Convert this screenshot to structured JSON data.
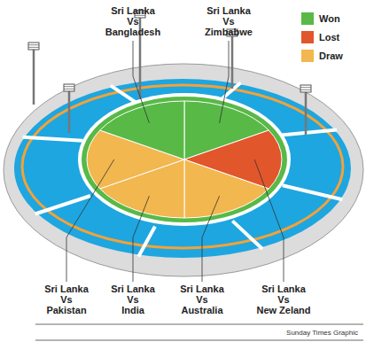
{
  "chart_data": {
    "type": "pie",
    "categories": [
      "Sri Lanka\nVs\nZimbabwe",
      "Sri Lanka\nVs\nNew Zeland",
      "Sri Lanka\nVs\nAustralia",
      "Sri Lanka\nVs\nIndia",
      "Sri Lanka\nVs\nPakistan",
      "Sri Lanka\nVs\nBangladesh"
    ],
    "values": [
      1,
      1,
      1,
      1,
      1,
      1
    ],
    "results": [
      "Won",
      "Lost",
      "Draw",
      "Draw",
      "Draw",
      "Won"
    ],
    "legend_labels": [
      "Won",
      "Lost",
      "Draw"
    ],
    "legend_colors": [
      "#58b947",
      "#e2562b",
      "#f2b74e"
    ],
    "legend": "top-right",
    "data_labels": false,
    "source": "Sunday Times Graphic"
  }
}
